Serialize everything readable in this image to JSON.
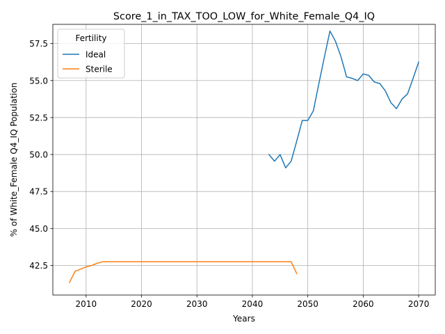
{
  "chart_data": {
    "type": "line",
    "title": "Score_1_in_TAX_TOO_LOW_for_White_Female_Q4_IQ",
    "xlabel": "Years",
    "ylabel": "% of White_Female Q4_IQ Population",
    "xlim": [
      2004,
      2073
    ],
    "ylim": [
      40.5,
      58.8
    ],
    "xticks": [
      2010,
      2020,
      2030,
      2040,
      2050,
      2060,
      2070
    ],
    "yticks": [
      42.5,
      45.0,
      47.5,
      50.0,
      52.5,
      55.0,
      57.5
    ],
    "grid": true,
    "legend": {
      "title": "Fertility",
      "placement": "top-left"
    },
    "series": [
      {
        "name": "Ideal",
        "color": "#1f77b4",
        "x": [
          2043,
          2044,
          2045,
          2046,
          2047,
          2048,
          2049,
          2050,
          2051,
          2052,
          2053,
          2054,
          2055,
          2056,
          2057,
          2058,
          2059,
          2060,
          2061,
          2062,
          2063,
          2064,
          2065,
          2066,
          2067,
          2068,
          2069,
          2070
        ],
        "y": [
          50.0,
          49.55,
          50.0,
          49.1,
          49.55,
          50.9,
          52.3,
          52.3,
          52.95,
          54.8,
          56.6,
          58.35,
          57.65,
          56.6,
          55.25,
          55.15,
          55.0,
          55.45,
          55.35,
          54.9,
          54.8,
          54.3,
          53.5,
          53.1,
          53.75,
          54.1,
          55.15,
          56.25
        ]
      },
      {
        "name": "Sterile",
        "color": "#ff7f0e",
        "x": [
          2007,
          2008,
          2009,
          2010,
          2011,
          2012,
          2013,
          2014,
          2020,
          2030,
          2040,
          2045,
          2046,
          2047,
          2048
        ],
        "y": [
          41.35,
          42.1,
          42.25,
          42.4,
          42.5,
          42.65,
          42.75,
          42.75,
          42.75,
          42.75,
          42.75,
          42.75,
          42.75,
          42.75,
          41.95
        ]
      }
    ]
  }
}
